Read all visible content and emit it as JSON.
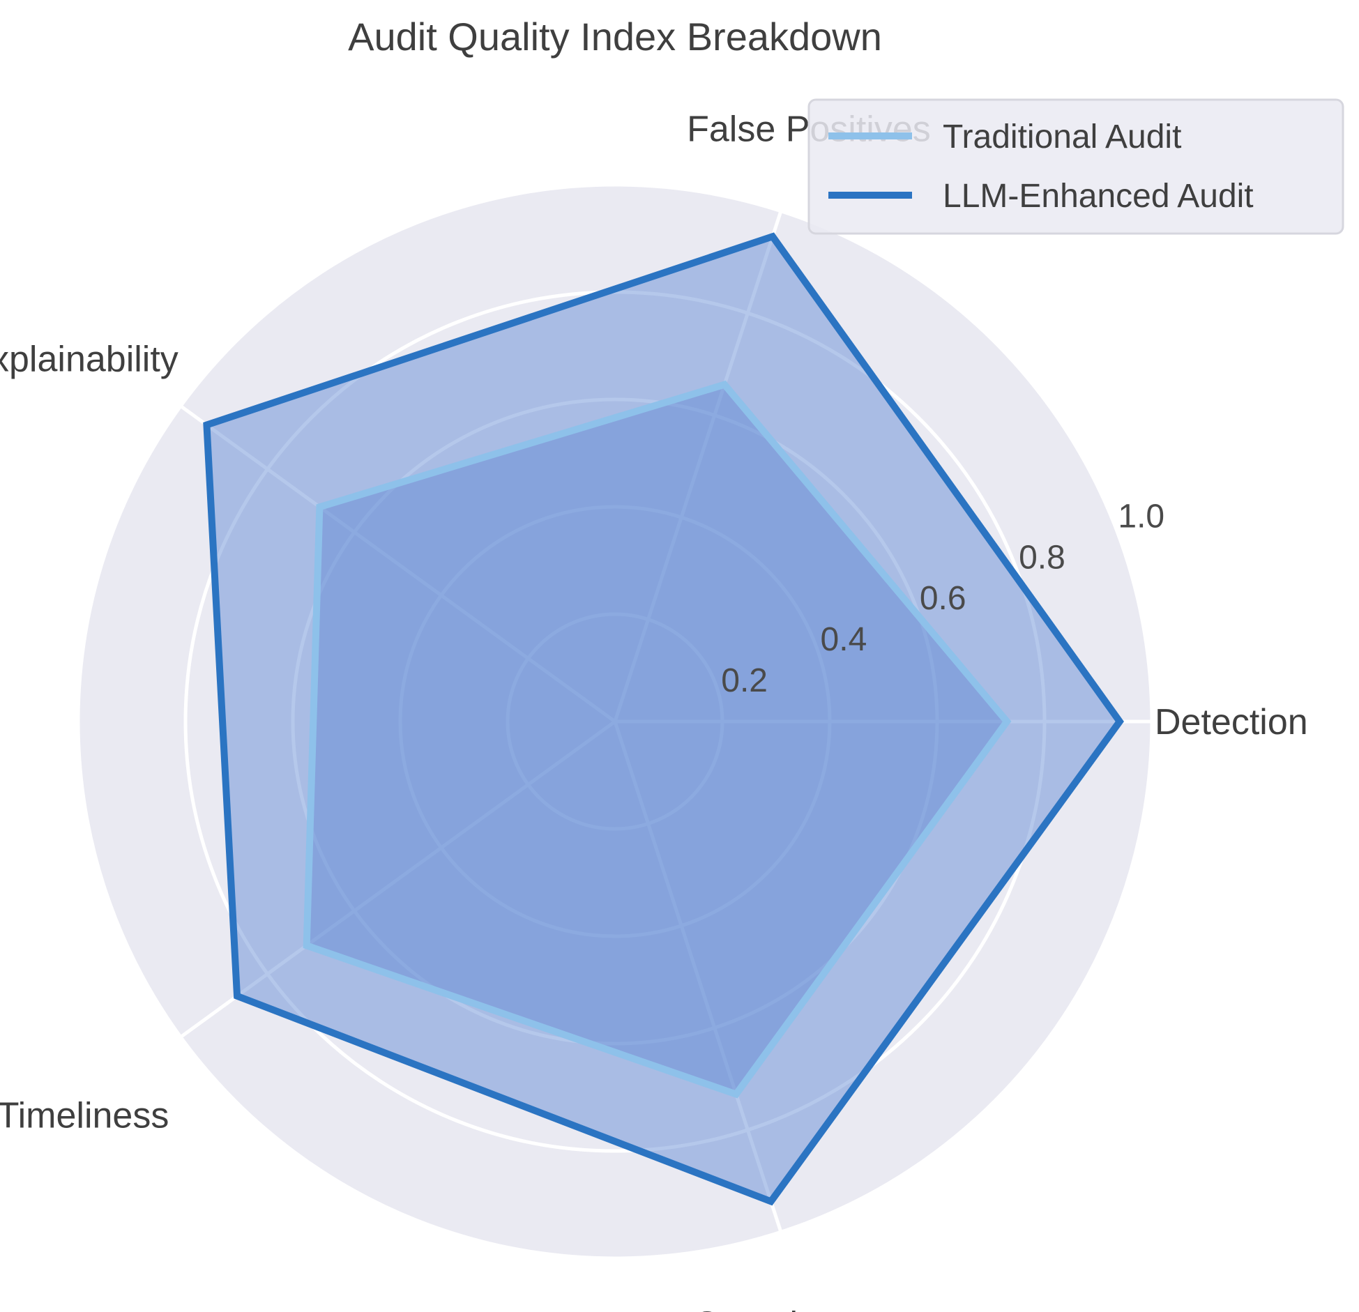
{
  "chart_data": {
    "type": "radar",
    "title": "Audit Quality Index Breakdown",
    "categories": [
      "Detection",
      "False Positives",
      "Explainability",
      "Timeliness",
      "Completeness"
    ],
    "rlim": [
      0,
      1.0
    ],
    "rticks": [
      0.2,
      0.4,
      0.6,
      0.8,
      1.0
    ],
    "rtick_labels": [
      "0.2",
      "0.4",
      "0.6",
      "0.8",
      "1.0"
    ],
    "grid": true,
    "legend_position": "top-right",
    "series": [
      {
        "name": "Traditional Audit",
        "values": [
          0.73,
          0.66,
          0.68,
          0.71,
          0.73
        ],
        "color": "#8ec1ea"
      },
      {
        "name": "LLM-Enhanced Audit",
        "values": [
          0.94,
          0.95,
          0.94,
          0.87,
          0.94
        ],
        "color": "#2b74c2"
      }
    ],
    "colors": {
      "background": "#eaeaf2",
      "grid": "#ffffff",
      "fill": "#5b86d3",
      "outer_ring": "#eaeaf2"
    }
  }
}
